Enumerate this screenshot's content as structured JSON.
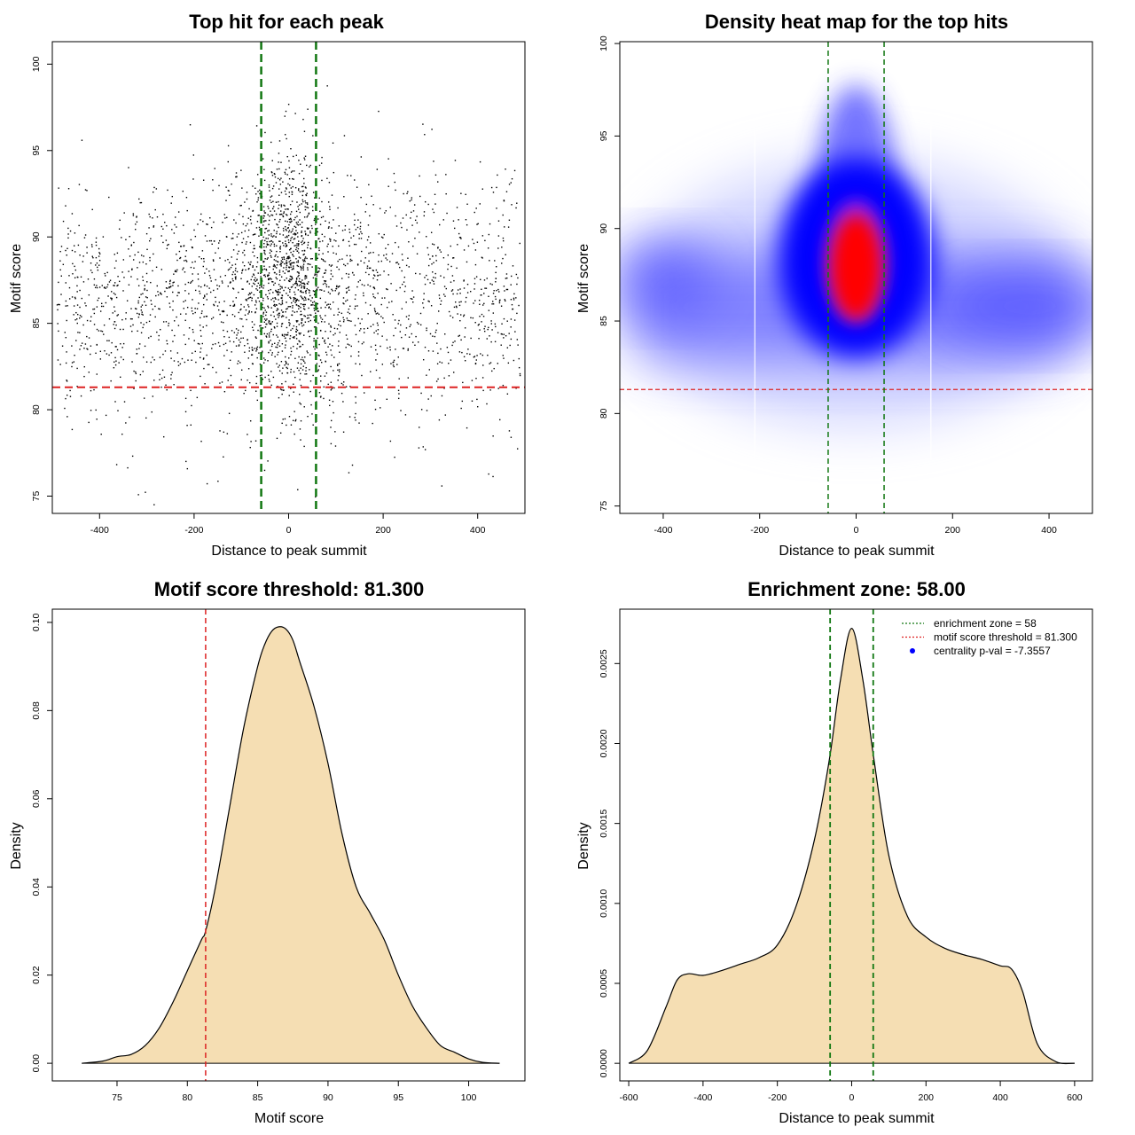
{
  "chart_data": [
    {
      "type": "scatter",
      "title": "Top hit for each peak",
      "xlabel": "Distance to peak summit",
      "ylabel": "Motif score",
      "xlim": [
        -500,
        500
      ],
      "ylim": [
        74,
        101.3
      ],
      "xticks": [
        -400,
        -200,
        0,
        200,
        400
      ],
      "yticks": [
        75,
        80,
        85,
        90,
        95,
        100
      ],
      "point_count": 3000,
      "point_color": "#000000",
      "distribution": {
        "center": {
          "weight": 0.24,
          "x_mean": 0,
          "x_sd": 38,
          "y_mean": 88.5,
          "y_sd": 3.4
        },
        "mid": {
          "weight": 0.16,
          "x_mean": 0,
          "x_sd": 140,
          "y_mean": 87,
          "y_sd": 3.6
        },
        "background": {
          "weight": 0.6,
          "x_min": -490,
          "x_max": 490,
          "y_mean": 86.3,
          "y_sd": 3.5
        }
      },
      "threshold": {
        "value": 81.3,
        "color": "#dd2222"
      },
      "enrichment_zone": {
        "lines": [
          -58,
          58
        ],
        "color": "#117711"
      }
    },
    {
      "type": "heatmap",
      "title": "Density heat map for the top hits",
      "xlabel": "Distance to peak summit",
      "ylabel": "Motif score",
      "xlim": [
        -490,
        490
      ],
      "ylim": [
        74.6,
        100.1
      ],
      "xticks": [
        -400,
        -200,
        0,
        200,
        400
      ],
      "yticks": [
        75,
        80,
        85,
        90,
        95,
        100
      ],
      "palette": [
        "#ffffff",
        "#0000ff",
        "#ff0000"
      ],
      "peak": {
        "x": 0,
        "y": 88.2
      },
      "threshold": {
        "value": 81.3,
        "color": "#dd2222"
      },
      "enrichment_zone": {
        "lines": [
          -58,
          58
        ],
        "color": "#117711"
      }
    },
    {
      "type": "area",
      "title": "Motif score threshold: 81.300",
      "xlabel": "Motif score",
      "ylabel": "Density",
      "xlim": [
        70.4,
        104
      ],
      "ylim": [
        -0.004,
        0.103
      ],
      "xticks": [
        75,
        80,
        85,
        90,
        95,
        100
      ],
      "yticks": [
        0.0,
        0.02,
        0.04,
        0.06,
        0.08,
        0.1
      ],
      "ytick_labels": [
        "0.00",
        "0.02",
        "0.04",
        "0.06",
        "0.08",
        "0.10"
      ],
      "fill": "#f5deb3",
      "x": [
        72.5,
        74,
        75,
        76,
        77,
        78,
        79,
        80,
        81,
        81.3,
        82,
        83,
        84,
        85,
        85.5,
        86,
        86.5,
        87,
        87.5,
        88,
        89,
        90,
        91,
        92,
        93,
        94,
        95,
        96,
        97,
        98,
        99,
        100,
        101,
        102.2
      ],
      "y": [
        0.0,
        0.0005,
        0.0015,
        0.002,
        0.004,
        0.008,
        0.014,
        0.021,
        0.028,
        0.03,
        0.04,
        0.058,
        0.076,
        0.09,
        0.095,
        0.098,
        0.099,
        0.0985,
        0.096,
        0.091,
        0.081,
        0.068,
        0.052,
        0.04,
        0.034,
        0.028,
        0.02,
        0.013,
        0.008,
        0.004,
        0.0025,
        0.001,
        0.0002,
        0.0
      ],
      "threshold": {
        "value": 81.3,
        "color": "#dd2222"
      }
    },
    {
      "type": "area",
      "title": "Enrichment zone: 58.00",
      "xlabel": "Distance to peak summit",
      "ylabel": "Density",
      "xlim": [
        -624,
        648
      ],
      "ylim": [
        -0.00011,
        0.00284
      ],
      "xticks": [
        -600,
        -400,
        -200,
        0,
        200,
        400,
        600
      ],
      "yticks": [
        0.0,
        0.0005,
        0.001,
        0.0015,
        0.002,
        0.0025
      ],
      "ytick_labels": [
        "0.0000",
        "0.0005",
        "0.0010",
        "0.0015",
        "0.0020",
        "0.0025"
      ],
      "fill": "#f5deb3",
      "x": [
        -600,
        -550,
        -500,
        -470,
        -440,
        -400,
        -350,
        -300,
        -250,
        -200,
        -150,
        -100,
        -60,
        -30,
        0,
        30,
        60,
        100,
        150,
        200,
        250,
        300,
        350,
        400,
        430,
        460,
        500,
        550,
        600
      ],
      "y": [
        0.0,
        8e-05,
        0.00035,
        0.00052,
        0.00056,
        0.00055,
        0.00058,
        0.00062,
        0.00066,
        0.00074,
        0.00098,
        0.0014,
        0.0019,
        0.0024,
        0.00272,
        0.0024,
        0.0019,
        0.0013,
        0.00092,
        0.00079,
        0.00072,
        0.00068,
        0.00065,
        0.00061,
        0.00059,
        0.00045,
        0.00012,
        1e-05,
        0.0
      ],
      "enrichment_zone": {
        "lines": [
          -58,
          58
        ],
        "color": "#117711"
      },
      "legend": {
        "position": "top-right",
        "entries": [
          {
            "label": "enrichment zone = 58",
            "color": "#117711",
            "symbol": "dotted-line"
          },
          {
            "label": "motif score threshold = 81.300",
            "color": "#dd2222",
            "symbol": "dotted-line"
          },
          {
            "label": "centrality p-val = -7.3557",
            "color": "#0000ff",
            "symbol": "dot"
          }
        ]
      }
    }
  ]
}
